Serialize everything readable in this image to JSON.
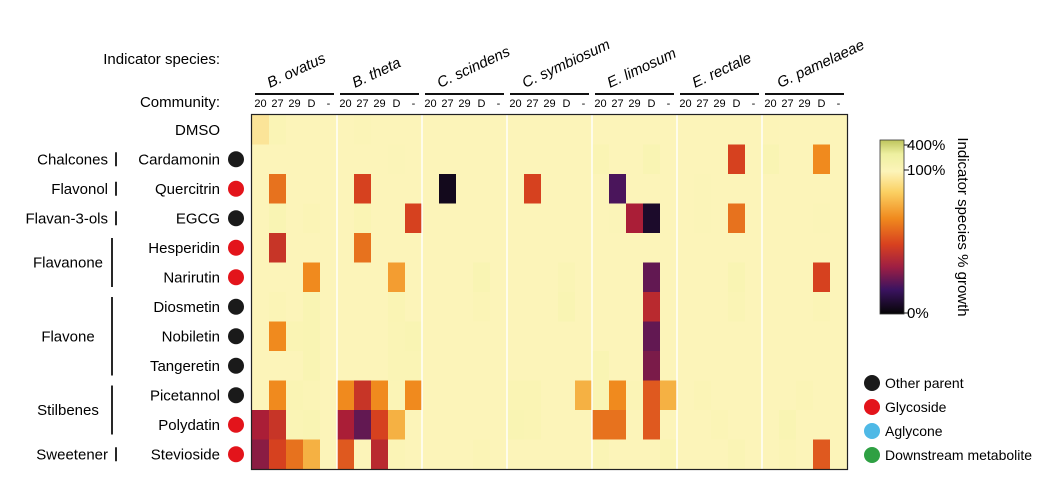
{
  "chart_data": {
    "type": "heatmap",
    "title": "",
    "row_header": "Indicator species:",
    "column_header": "Community:",
    "species": [
      "B. ovatus",
      "B. theta",
      "C. scindens",
      "C. symbiosum",
      "E. limosum",
      "E. rectale",
      "G. pamelaeae"
    ],
    "communities": [
      "20",
      "27",
      "29",
      "D",
      "-"
    ],
    "rows": [
      "DMSO",
      "Cardamonin",
      "Quercitrin",
      "EGCG",
      "Hesperidin",
      "Narirutin",
      "Diosmetin",
      "Nobiletin",
      "Tangeretin",
      "Picetannol",
      "Polydatin",
      "Stevioside"
    ],
    "row_classes": [
      {
        "label": "Chalcones",
        "rows": [
          "Cardamonin"
        ]
      },
      {
        "label": "Flavonol",
        "rows": [
          "Quercitrin"
        ]
      },
      {
        "label": "Flavan-3-ols",
        "rows": [
          "EGCG"
        ]
      },
      {
        "label": "Flavanone",
        "rows": [
          "Hesperidin",
          "Narirutin"
        ]
      },
      {
        "label": "Flavone",
        "rows": [
          "Diosmetin",
          "Nobiletin",
          "Tangeretin"
        ]
      },
      {
        "label": "Stilbenes",
        "rows": [
          "Picetannol",
          "Polydatin"
        ]
      },
      {
        "label": "Sweetener",
        "rows": [
          "Stevioside"
        ]
      }
    ],
    "row_types": [
      null,
      "Other parent",
      "Glycoside",
      "Other parent",
      "Glycoside",
      "Glycoside",
      "Other parent",
      "Other parent",
      "Other parent",
      "Other parent",
      "Glycoside",
      "Glycoside"
    ],
    "legend": [
      {
        "label": "Other parent",
        "color": "#1a1a1a"
      },
      {
        "label": "Glycoside",
        "color": "#e3141b"
      },
      {
        "label": "Aglycone",
        "color": "#4fb9e6"
      },
      {
        "label": "Downstream metabolite",
        "color": "#2ea043"
      }
    ],
    "colorbar": {
      "label": "Indicator species % growth",
      "ticks": [
        "400%",
        "100%",
        "0%"
      ],
      "values": [
        400,
        100,
        0
      ]
    },
    "values": [
      [
        95,
        130,
        100,
        100,
        100,
        100,
        115,
        100,
        100,
        100,
        100,
        100,
        100,
        100,
        100,
        100,
        100,
        100,
        100,
        100,
        100,
        100,
        100,
        100,
        100,
        100,
        100,
        100,
        100,
        100,
        105,
        100,
        100,
        100,
        100
      ],
      [
        100,
        100,
        100,
        100,
        100,
        100,
        100,
        100,
        110,
        100,
        100,
        100,
        100,
        100,
        100,
        100,
        100,
        100,
        100,
        100,
        140,
        100,
        100,
        150,
        100,
        100,
        100,
        100,
        55,
        100,
        150,
        100,
        100,
        70,
        100
      ],
      [
        100,
        65,
        100,
        100,
        100,
        100,
        55,
        100,
        100,
        100,
        100,
        3,
        100,
        100,
        100,
        100,
        55,
        100,
        100,
        100,
        100,
        15,
        100,
        100,
        100,
        100,
        110,
        100,
        100,
        100,
        100,
        100,
        100,
        100,
        100
      ],
      [
        100,
        150,
        100,
        120,
        100,
        100,
        140,
        100,
        100,
        55,
        100,
        100,
        100,
        100,
        100,
        100,
        100,
        100,
        100,
        100,
        100,
        110,
        40,
        5,
        100,
        100,
        110,
        100,
        65,
        100,
        100,
        100,
        100,
        110,
        100
      ],
      [
        100,
        50,
        100,
        100,
        100,
        100,
        65,
        100,
        100,
        100,
        100,
        100,
        100,
        100,
        100,
        100,
        100,
        100,
        100,
        100,
        100,
        100,
        100,
        100,
        100,
        100,
        100,
        100,
        100,
        100,
        100,
        100,
        100,
        100,
        100
      ],
      [
        100,
        100,
        100,
        70,
        100,
        100,
        100,
        100,
        75,
        100,
        100,
        100,
        100,
        150,
        100,
        100,
        100,
        100,
        130,
        100,
        100,
        100,
        100,
        20,
        100,
        100,
        100,
        100,
        150,
        100,
        100,
        100,
        100,
        55,
        100
      ],
      [
        100,
        120,
        100,
        150,
        100,
        100,
        100,
        100,
        140,
        100,
        100,
        100,
        100,
        120,
        100,
        100,
        100,
        100,
        150,
        100,
        100,
        100,
        100,
        45,
        100,
        100,
        100,
        100,
        130,
        100,
        100,
        100,
        100,
        120,
        100
      ],
      [
        100,
        70,
        140,
        150,
        100,
        100,
        100,
        100,
        130,
        150,
        100,
        100,
        100,
        100,
        100,
        100,
        100,
        100,
        100,
        100,
        100,
        100,
        100,
        20,
        100,
        100,
        100,
        100,
        100,
        100,
        100,
        100,
        100,
        100,
        100
      ],
      [
        100,
        100,
        100,
        150,
        100,
        100,
        100,
        100,
        130,
        130,
        100,
        100,
        100,
        100,
        100,
        100,
        100,
        100,
        100,
        100,
        150,
        100,
        100,
        25,
        100,
        100,
        100,
        100,
        100,
        100,
        100,
        100,
        100,
        100,
        100
      ],
      [
        100,
        70,
        140,
        120,
        100,
        70,
        50,
        70,
        120,
        70,
        100,
        100,
        100,
        100,
        100,
        140,
        140,
        100,
        100,
        80,
        150,
        70,
        120,
        60,
        80,
        100,
        120,
        100,
        100,
        100,
        100,
        100,
        120,
        100,
        100
      ],
      [
        40,
        50,
        130,
        150,
        100,
        40,
        20,
        55,
        80,
        100,
        100,
        100,
        100,
        100,
        100,
        150,
        140,
        100,
        100,
        100,
        65,
        65,
        100,
        60,
        100,
        100,
        100,
        120,
        100,
        100,
        100,
        150,
        100,
        100,
        100
      ],
      [
        30,
        55,
        65,
        80,
        100,
        60,
        100,
        45,
        120,
        100,
        100,
        100,
        100,
        120,
        100,
        100,
        100,
        100,
        100,
        100,
        130,
        100,
        100,
        100,
        140,
        100,
        100,
        100,
        130,
        100,
        100,
        120,
        100,
        60,
        100
      ]
    ]
  }
}
